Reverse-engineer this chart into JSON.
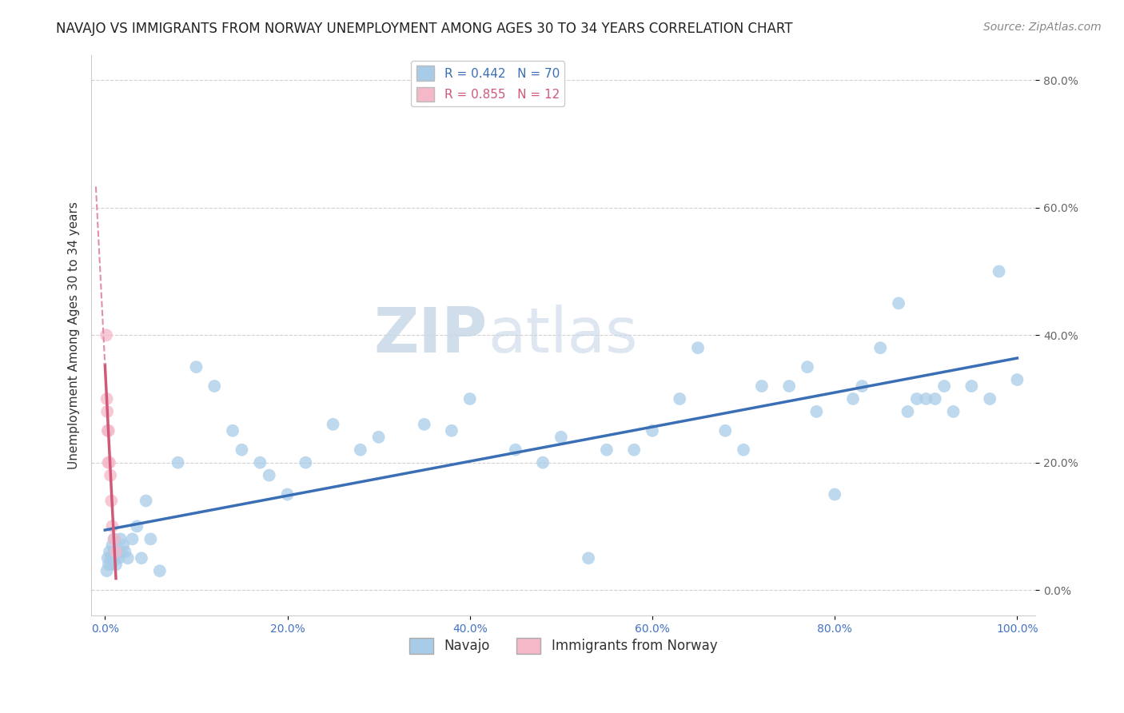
{
  "title": "NAVAJO VS IMMIGRANTS FROM NORWAY UNEMPLOYMENT AMONG AGES 30 TO 34 YEARS CORRELATION CHART",
  "source_text": "Source: ZipAtlas.com",
  "ylabel": "Unemployment Among Ages 30 to 34 years",
  "watermark_zip": "ZIP",
  "watermark_atlas": "atlas",
  "legend_navajo": "Navajo",
  "legend_norway": "Immigrants from Norway",
  "R_navajo": 0.442,
  "N_navajo": 70,
  "R_norway": 0.855,
  "N_norway": 12,
  "navajo_color": "#a8cce8",
  "norway_color": "#f4b8c8",
  "navajo_line_color": "#3a6fb5",
  "norway_line_color": "#d05878",
  "norway_dashed_color": "#e090a8",
  "background_color": "#ffffff",
  "xlim": [
    -1.5,
    102.0
  ],
  "ylim": [
    -4.0,
    84.0
  ],
  "xticks": [
    0.0,
    20.0,
    40.0,
    60.0,
    80.0,
    100.0
  ],
  "yticks": [
    0.0,
    20.0,
    40.0,
    60.0,
    80.0
  ],
  "nav_x": [
    0.2,
    0.3,
    0.4,
    0.5,
    0.6,
    0.7,
    0.8,
    0.9,
    1.0,
    1.0,
    1.1,
    1.2,
    1.3,
    1.5,
    1.7,
    1.8,
    2.0,
    2.2,
    2.5,
    3.0,
    3.5,
    4.0,
    4.5,
    5.0,
    6.0,
    8.0,
    10.0,
    12.0,
    14.0,
    15.0,
    17.0,
    18.0,
    20.0,
    22.0,
    25.0,
    28.0,
    30.0,
    35.0,
    38.0,
    40.0,
    45.0,
    48.0,
    50.0,
    53.0,
    55.0,
    58.0,
    60.0,
    63.0,
    65.0,
    68.0,
    70.0,
    72.0,
    75.0,
    77.0,
    78.0,
    80.0,
    82.0,
    83.0,
    85.0,
    87.0,
    88.0,
    89.0,
    90.0,
    91.0,
    92.0,
    93.0,
    95.0,
    97.0,
    98.0,
    100.0
  ],
  "nav_y": [
    3.0,
    5.0,
    4.0,
    6.0,
    5.0,
    4.0,
    7.0,
    5.0,
    6.0,
    8.0,
    5.0,
    4.0,
    6.0,
    5.0,
    8.0,
    6.0,
    7.0,
    6.0,
    5.0,
    8.0,
    10.0,
    5.0,
    14.0,
    8.0,
    3.0,
    20.0,
    35.0,
    32.0,
    25.0,
    22.0,
    20.0,
    18.0,
    15.0,
    20.0,
    26.0,
    22.0,
    24.0,
    26.0,
    25.0,
    30.0,
    22.0,
    20.0,
    24.0,
    5.0,
    22.0,
    22.0,
    25.0,
    30.0,
    38.0,
    25.0,
    22.0,
    32.0,
    32.0,
    35.0,
    28.0,
    15.0,
    30.0,
    32.0,
    38.0,
    45.0,
    28.0,
    30.0,
    30.0,
    30.0,
    32.0,
    28.0,
    32.0,
    30.0,
    50.0,
    33.0
  ],
  "nor_x": [
    0.15,
    0.2,
    0.25,
    0.3,
    0.35,
    0.4,
    0.5,
    0.6,
    0.7,
    0.8,
    1.0,
    1.2
  ],
  "nor_y": [
    40.0,
    30.0,
    28.0,
    25.0,
    20.0,
    25.0,
    20.0,
    18.0,
    14.0,
    10.0,
    8.0,
    6.0
  ],
  "title_fontsize": 12,
  "axis_label_fontsize": 11,
  "tick_fontsize": 10,
  "legend_fontsize": 11,
  "watermark_fontsize": 56,
  "source_fontsize": 10
}
